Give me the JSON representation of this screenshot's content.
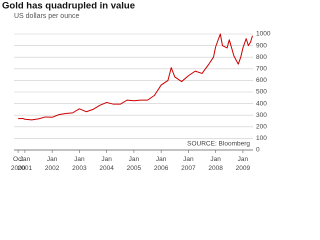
{
  "chart_data": {
    "type": "line",
    "title": "Gold has quadrupled in value",
    "subtitle": "US dollars per ounce",
    "source": "SOURCE: Bloomberg",
    "x": [
      2000.75,
      2000.92,
      2001.0,
      2001.25,
      2001.5,
      2001.75,
      2002.0,
      2002.25,
      2002.5,
      2002.75,
      2003.0,
      2003.25,
      2003.5,
      2003.75,
      2004.0,
      2004.25,
      2004.5,
      2004.75,
      2005.0,
      2005.25,
      2005.5,
      2005.75,
      2006.0,
      2006.25,
      2006.37,
      2006.5,
      2006.75,
      2007.0,
      2007.25,
      2007.5,
      2007.75,
      2007.92,
      2008.0,
      2008.17,
      2008.25,
      2008.42,
      2008.5,
      2008.67,
      2008.83,
      2008.92,
      2009.0,
      2009.12,
      2009.2,
      2009.28,
      2009.35
    ],
    "series": [
      {
        "name": "Gold",
        "color": "#cc0000",
        "values": [
          270,
          272,
          265,
          260,
          268,
          285,
          282,
          305,
          315,
          320,
          355,
          330,
          350,
          385,
          410,
          395,
          395,
          430,
          425,
          430,
          430,
          470,
          560,
          600,
          710,
          630,
          590,
          640,
          680,
          660,
          740,
          800,
          890,
          1000,
          900,
          880,
          950,
          810,
          740,
          800,
          880,
          960,
          900,
          930,
          985
        ]
      }
    ],
    "xlim": [
      2000.6,
      2009.37
    ],
    "xticks": [
      {
        "value": 2000.75,
        "label": "Oct 2000"
      },
      {
        "value": 2001,
        "label": "Jan 2001"
      },
      {
        "value": 2002,
        "label": "Jan 2002"
      },
      {
        "value": 2003,
        "label": "Jan 2003"
      },
      {
        "value": 2004,
        "label": "Jan 2004"
      },
      {
        "value": 2005,
        "label": "Jan 2005"
      },
      {
        "value": 2006,
        "label": "Jan 2006"
      },
      {
        "value": 2007,
        "label": "Jan 2007"
      },
      {
        "value": 2008,
        "label": "Jan 2008"
      },
      {
        "value": 2009,
        "label": "Jan 2009"
      }
    ],
    "ylim": [
      0,
      1000
    ],
    "yticks": [
      0,
      100,
      200,
      300,
      400,
      500,
      600,
      700,
      800,
      900,
      1000
    ],
    "grid": true
  }
}
